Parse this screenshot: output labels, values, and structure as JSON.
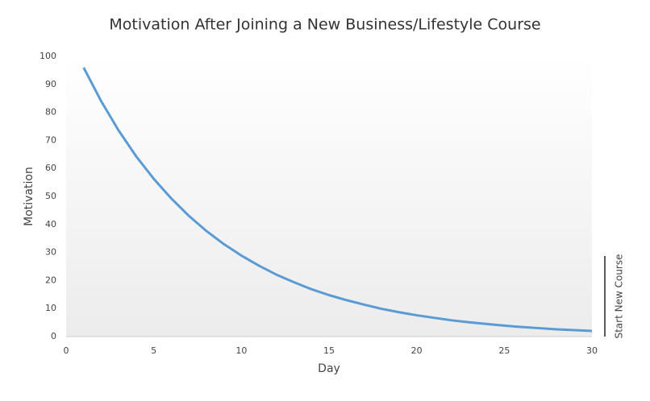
{
  "chart_data": {
    "type": "line",
    "title": "Motivation After Joining a New Business/Lifestyle Course",
    "x_label": "Day",
    "y_label": "Motivation",
    "annotation": "Start New Course",
    "x": [
      1,
      2,
      3,
      4,
      5,
      6,
      7,
      8,
      9,
      10,
      11,
      12,
      13,
      14,
      15,
      16,
      17,
      18,
      19,
      20,
      21,
      22,
      23,
      24,
      25,
      26,
      27,
      28,
      29,
      30
    ],
    "values": [
      96,
      84,
      73.5,
      64.3,
      56.3,
      49.3,
      43.1,
      37.7,
      33,
      28.9,
      25.3,
      22.1,
      19.4,
      16.9,
      14.8,
      13,
      11.4,
      9.9,
      8.7,
      7.6,
      6.7,
      5.8,
      5.1,
      4.5,
      3.9,
      3.4,
      3,
      2.6,
      2.3,
      2
    ],
    "color": "#5b9bd5",
    "xlim": [
      0,
      30
    ],
    "xticks": [
      0,
      5,
      10,
      15,
      20,
      25,
      30
    ],
    "ylim": [
      0,
      100
    ],
    "yticks": [
      0,
      10,
      20,
      30,
      40,
      50,
      60,
      70,
      80,
      90,
      100
    ]
  }
}
